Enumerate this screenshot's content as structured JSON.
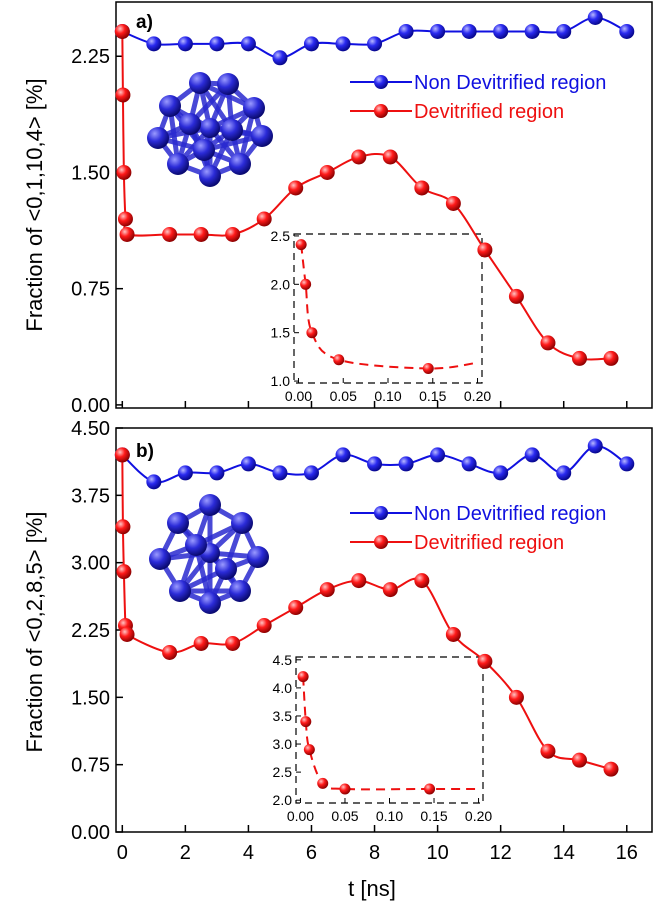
{
  "x_axis_label": "t [ns]",
  "panels": [
    {
      "panel_label": "a)",
      "ylabel": "Fraction of <0,1,10,4>  [%]",
      "cluster_icon": "icosahedral-cluster-icon",
      "chart_data": {
        "type": "line",
        "xlim": [
          -0.2,
          16.8
        ],
        "ylim": [
          -0.02,
          2.6
        ],
        "x_ticks": [
          0,
          2,
          4,
          6,
          8,
          10,
          12,
          14,
          16
        ],
        "y_ticks": [
          0.0,
          0.75,
          1.5,
          2.25
        ],
        "y_tick_labels": [
          "0.00",
          "0.75",
          "1.50",
          "2.25"
        ],
        "legend_position": "top-right",
        "series": [
          {
            "name": "Non Devitrified region",
            "color": "#1010e0",
            "x": [
              0,
              1,
              2,
              3,
              4,
              5,
              6,
              7,
              8,
              9,
              10,
              11,
              12,
              13,
              14,
              15,
              16
            ],
            "y": [
              2.41,
              2.33,
              2.33,
              2.33,
              2.33,
              2.24,
              2.33,
              2.33,
              2.33,
              2.41,
              2.41,
              2.41,
              2.41,
              2.41,
              2.41,
              2.5,
              2.41
            ]
          },
          {
            "name": "Devitrified region",
            "color": "#ee1010",
            "x": [
              0,
              0.02,
              0.05,
              0.1,
              0.15,
              1.5,
              2.5,
              3.5,
              4.5,
              5.5,
              6.5,
              7.5,
              8.5,
              9.5,
              10.5,
              11.5,
              12.5,
              13.5,
              14.5,
              15.5
            ],
            "y": [
              2.41,
              2.0,
              1.5,
              1.2,
              1.1,
              1.1,
              1.1,
              1.1,
              1.2,
              1.4,
              1.5,
              1.6,
              1.6,
              1.4,
              1.3,
              1.0,
              0.7,
              0.4,
              0.3,
              0.3
            ]
          }
        ],
        "inset": {
          "xlim": [
            -0.005,
            0.205
          ],
          "ylim": [
            0.98,
            2.52
          ],
          "x_ticks": [
            0.0,
            0.05,
            0.1,
            0.15,
            0.2
          ],
          "x_tick_labels": [
            "0.00",
            "0.05",
            "0.10",
            "0.15",
            "0.20"
          ],
          "y_ticks": [
            1.0,
            1.5,
            2.0,
            2.5
          ],
          "y_tick_labels": [
            "1.0",
            "1.5",
            "2.0",
            "2.5"
          ],
          "x": [
            0.003,
            0.008,
            0.015,
            0.045,
            0.145
          ],
          "y": [
            2.41,
            2.0,
            1.5,
            1.22,
            1.13
          ],
          "fit_end": [
            0.2,
            1.19
          ]
        }
      }
    },
    {
      "panel_label": "b)",
      "ylabel": "Fraction of  <0,2,8,5> [%]",
      "cluster_icon": "polyhedral-cluster-icon",
      "chart_data": {
        "type": "line",
        "xlim": [
          -0.2,
          16.8
        ],
        "ylim": [
          0.0,
          4.5
        ],
        "x_ticks": [
          0,
          2,
          4,
          6,
          8,
          10,
          12,
          14,
          16
        ],
        "x_tick_labels": [
          "0",
          "2",
          "4",
          "6",
          "8",
          "10",
          "12",
          "14",
          "16"
        ],
        "y_ticks": [
          0.0,
          0.75,
          1.5,
          2.25,
          3.0,
          3.75,
          4.5
        ],
        "y_tick_labels": [
          "0.00",
          "0.75",
          "1.50",
          "2.25",
          "3.00",
          "3.75",
          "4.50"
        ],
        "legend_position": "top-right",
        "series": [
          {
            "name": "Non Devitrified region",
            "color": "#1010e0",
            "x": [
              0,
              1,
              2,
              3,
              4,
              5,
              6,
              7,
              8,
              9,
              10,
              11,
              12,
              13,
              14,
              15,
              16
            ],
            "y": [
              4.2,
              3.9,
              4.0,
              4.0,
              4.1,
              4.0,
              4.0,
              4.2,
              4.1,
              4.1,
              4.2,
              4.1,
              4.0,
              4.2,
              4.0,
              4.3,
              4.1
            ]
          },
          {
            "name": "Devitrified region",
            "color": "#ee1010",
            "x": [
              0,
              0.02,
              0.05,
              0.1,
              0.15,
              1.5,
              2.5,
              3.5,
              4.5,
              5.5,
              6.5,
              7.5,
              8.5,
              9.5,
              10.5,
              11.5,
              12.5,
              13.5,
              14.5,
              15.5
            ],
            "y": [
              4.2,
              3.4,
              2.9,
              2.3,
              2.2,
              2.0,
              2.1,
              2.1,
              2.3,
              2.5,
              2.7,
              2.8,
              2.7,
              2.8,
              2.2,
              1.9,
              1.5,
              0.9,
              0.8,
              0.7
            ]
          }
        ],
        "inset": {
          "xlim": [
            -0.005,
            0.205
          ],
          "ylim": [
            1.95,
            4.55
          ],
          "x_ticks": [
            0.0,
            0.05,
            0.1,
            0.15,
            0.2
          ],
          "x_tick_labels": [
            "0.00",
            "0.05",
            "0.10",
            "0.15",
            "0.20"
          ],
          "y_ticks": [
            2.0,
            2.5,
            3.0,
            3.5,
            4.0,
            4.5
          ],
          "y_tick_labels": [
            "2.0",
            "2.5",
            "3.0",
            "3.5",
            "4.0",
            "4.5"
          ],
          "x": [
            0.003,
            0.006,
            0.01,
            0.025,
            0.05,
            0.145
          ],
          "y": [
            4.2,
            3.4,
            2.9,
            2.3,
            2.2,
            2.2
          ],
          "fit_end": [
            0.2,
            2.2
          ]
        }
      }
    }
  ]
}
